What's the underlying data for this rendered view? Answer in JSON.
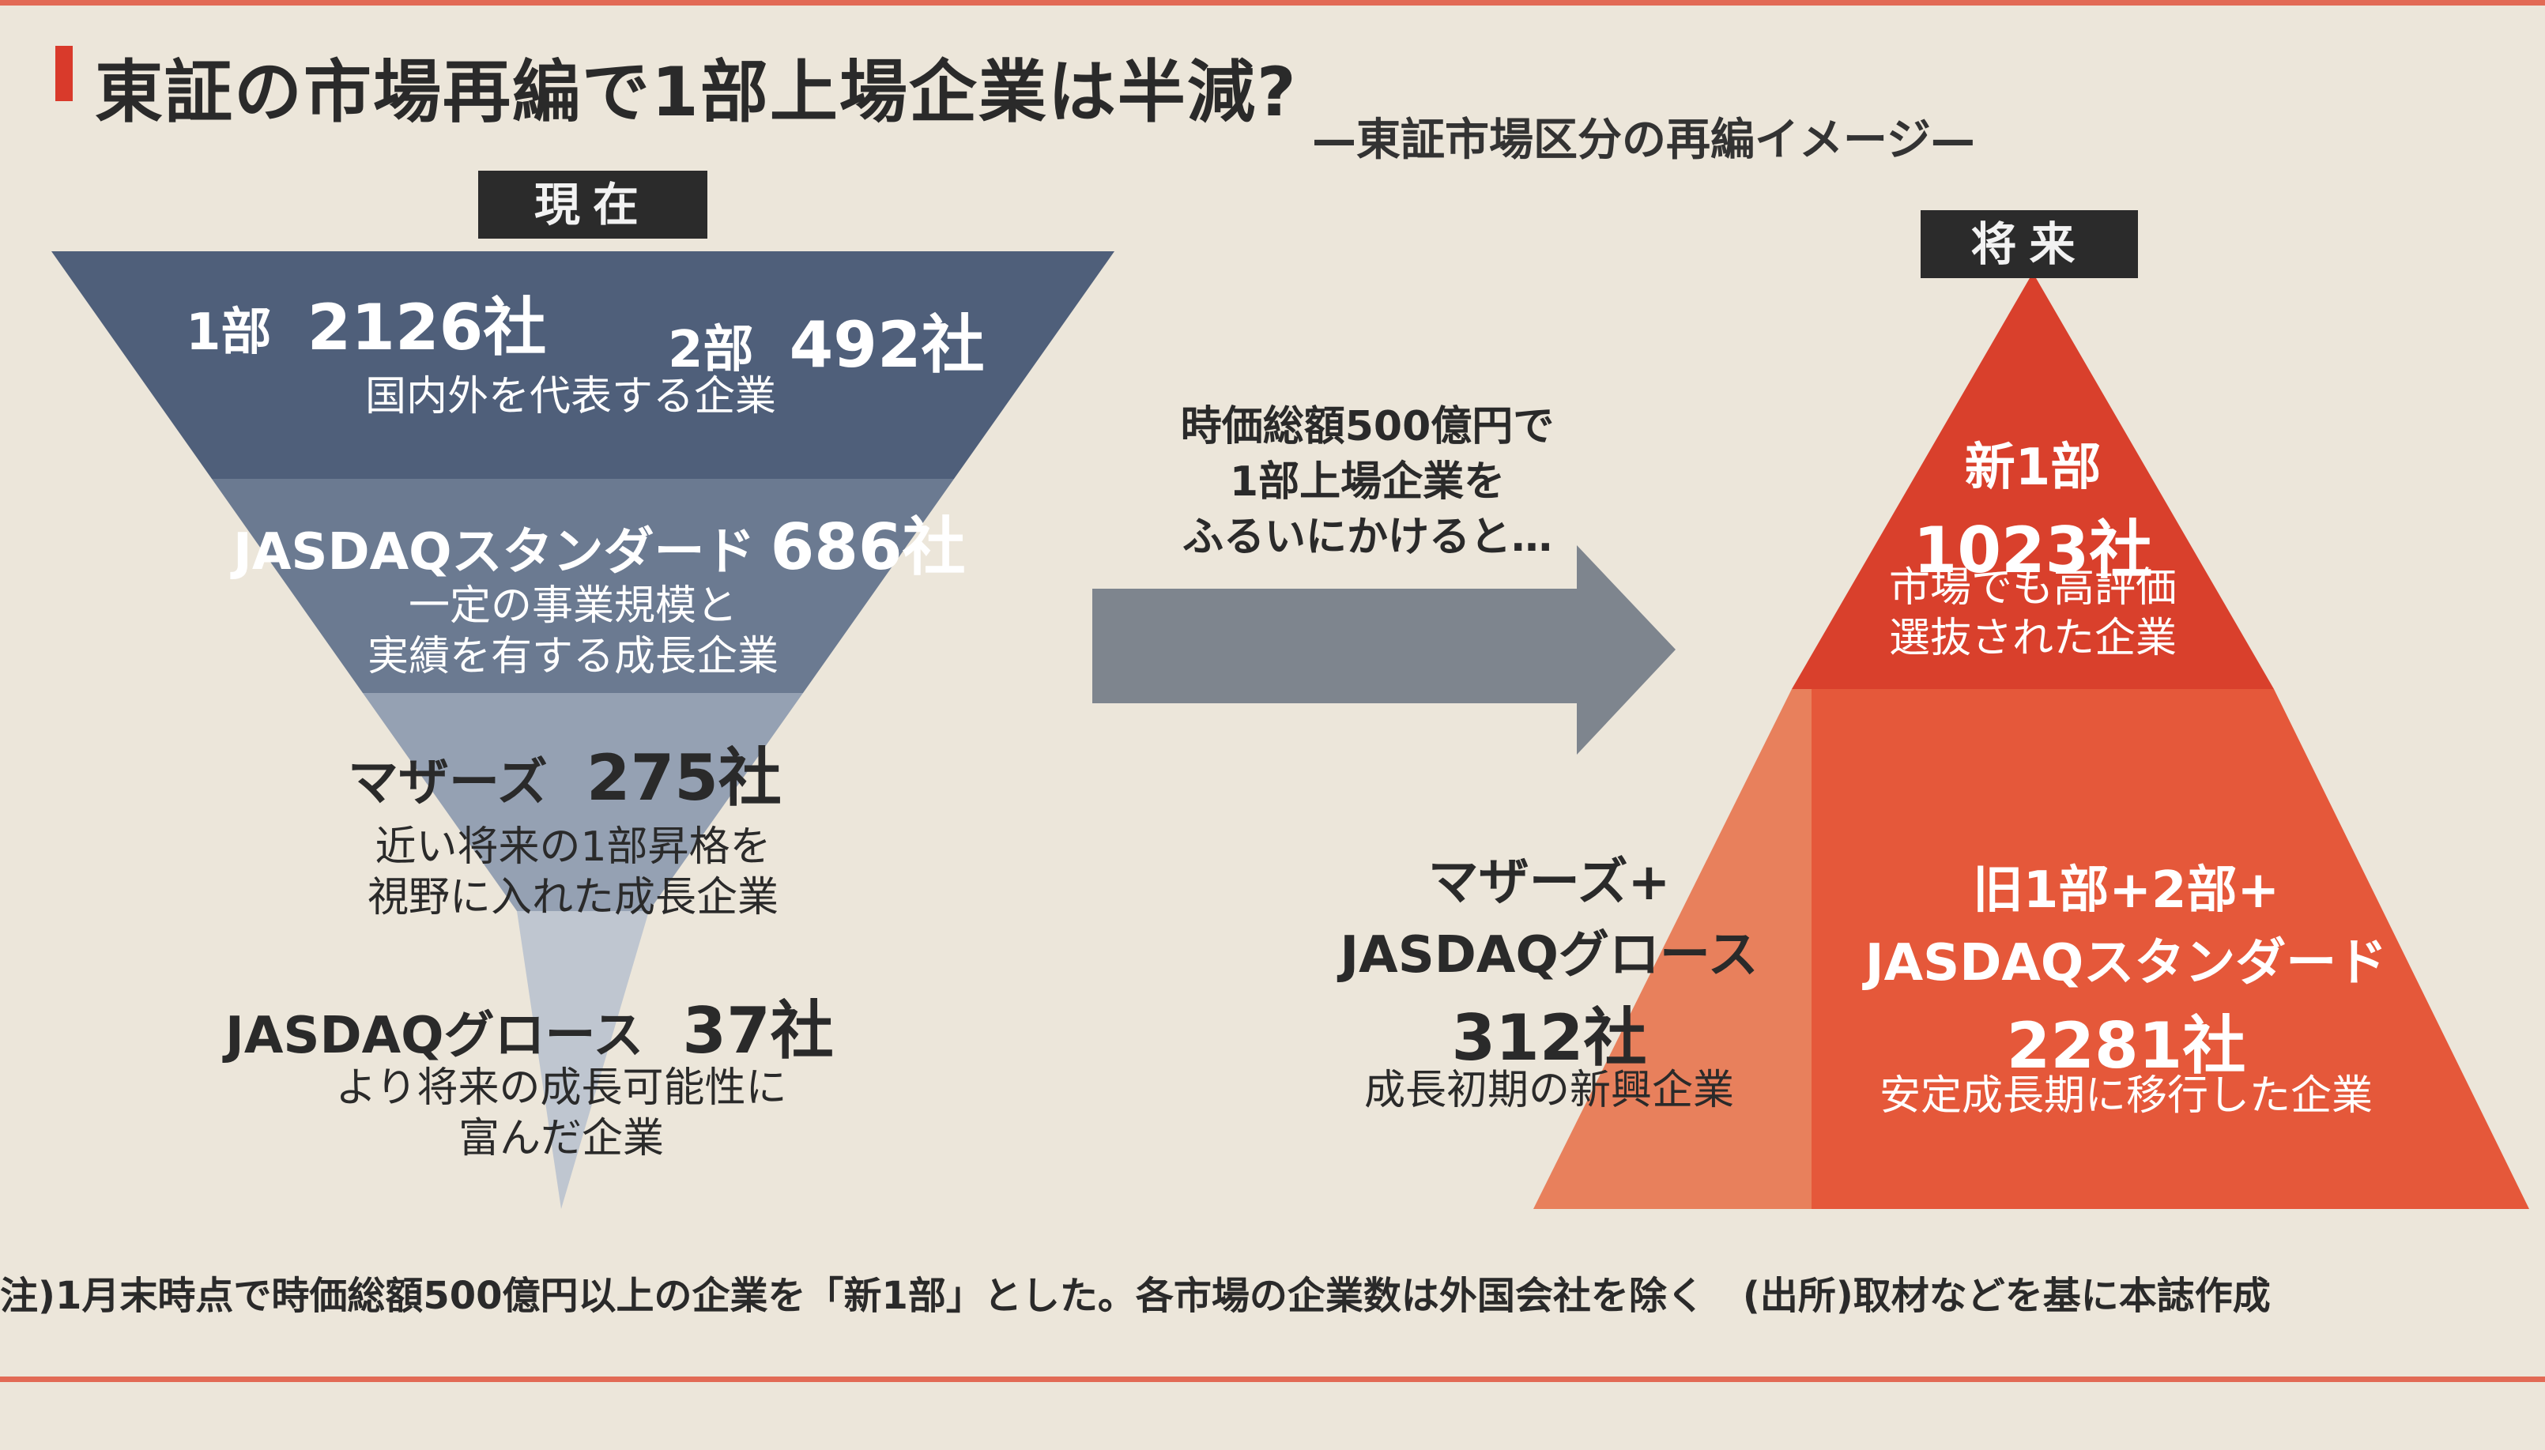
{
  "title": "東証の市場再編で1部上場企業は半減?",
  "subtitle": "—東証市場区分の再編イメージ—",
  "current_label": "現在",
  "future_label": "将来",
  "current": {
    "tier1": {
      "a_name": "1部",
      "a_count": "2126社",
      "b_name": "2部",
      "b_count": "492社",
      "desc": "国内外を代表する企業"
    },
    "tier2": {
      "name": "JASDAQスタンダード",
      "count": "686社",
      "desc1": "一定の事業規模と",
      "desc2": "実績を有する成長企業"
    },
    "tier3": {
      "name": "マザーズ",
      "count": "275社",
      "desc1": "近い将来の1部昇格を",
      "desc2": "視野に入れた成長企業"
    },
    "tier4": {
      "name": "JASDAQグロース",
      "count": "37社",
      "desc1": "より将来の成長可能性に",
      "desc2": "富んだ企業"
    }
  },
  "arrow_note": [
    "時価総額500億円で",
    "1部上場企業を",
    "ふるいにかけると…"
  ],
  "future": {
    "top": {
      "name": "新1部",
      "count": "1023社",
      "desc1": "市場でも高評価",
      "desc2": "選抜された企業"
    },
    "left": {
      "name1": "マザーズ+",
      "name2": "JASDAQグロース",
      "count": "312社",
      "desc": "成長初期の新興企業"
    },
    "right": {
      "name1": "旧1部+2部+",
      "name2": "JASDAQスタンダード",
      "count": "2281社",
      "desc": "安定成長期に移行した企業"
    }
  },
  "footnote": "注)1月末時点で時価総額500億円以上の企業を「新1部」とした。各市場の企業数は外国会社を除く　(出所)取材などを基に本誌作成",
  "colors": {
    "tier1": "#4f5f7a",
    "tier2": "#6b7a91",
    "tier3": "#95a1b3",
    "tier4": "#bfc6d0",
    "arrow": "#7e858e",
    "future_top": "#d9402c",
    "future_left": "#e8805c",
    "future_right": "#e5583a",
    "accent": "#d93a2b"
  }
}
